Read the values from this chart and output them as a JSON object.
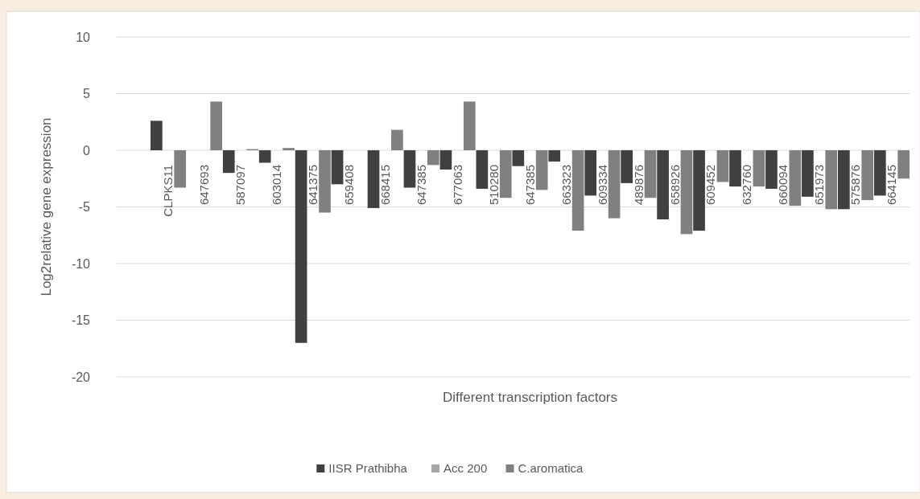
{
  "chart_data": {
    "type": "bar",
    "xlabel": "Different transcription factors",
    "ylabel": "Log2relative gene expression",
    "categories": [
      "CLPKS11",
      "647693",
      "587097",
      "603014",
      "641375",
      "659408",
      "668415",
      "647385",
      "677063",
      "510280",
      "647385",
      "663323",
      "609334",
      "489876",
      "658926",
      "609452",
      "632760",
      "660094",
      "651973",
      "575876",
      "664145"
    ],
    "series": [
      {
        "name": "IISR Prathibha",
        "color": "#404040",
        "values": [
          2.6,
          0,
          -2,
          -1.1,
          -17,
          -3,
          -5.1,
          -3.3,
          -1.7,
          -3.4,
          -1.4,
          -1,
          -4,
          -2.9,
          -6.1,
          -7.1,
          -3.2,
          -3.4,
          -4.1,
          -5.2,
          -4
        ]
      },
      {
        "name": "Acc 200",
        "color": "#a6a6a6",
        "values": [
          0,
          0,
          0,
          0,
          0,
          0,
          0,
          0,
          0,
          0,
          0,
          0,
          0,
          0,
          0,
          0,
          0,
          0,
          0,
          0,
          0
        ]
      },
      {
        "name": "C.aromatica",
        "color": "#808080",
        "values": [
          -3.3,
          4.3,
          0.1,
          0.2,
          -5.5,
          0,
          1.8,
          -1.3,
          4.3,
          -4.2,
          -3.5,
          -7.1,
          -6,
          -4.2,
          -7.4,
          -2.8,
          -3.2,
          -4.9,
          -5.2,
          -4.4,
          -2.5
        ]
      }
    ],
    "ylim": [
      -20,
      10
    ],
    "yticks": [
      -20,
      -15,
      -10,
      -5,
      0,
      5,
      10
    ],
    "grid": "y",
    "legend": "bottom"
  }
}
